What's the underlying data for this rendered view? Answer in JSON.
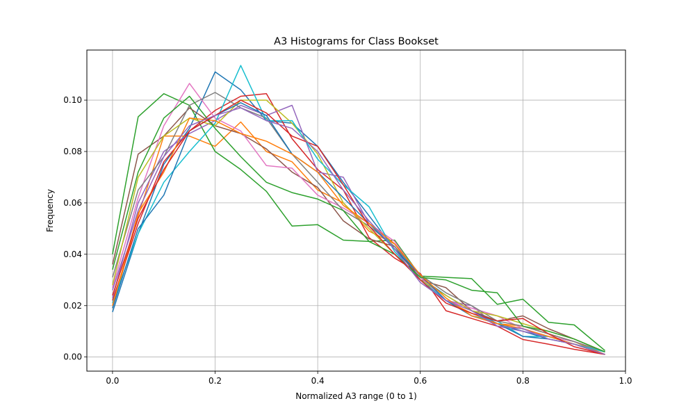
{
  "chart_data": {
    "type": "line",
    "title": "A3 Histograms for Class Bookset",
    "xlabel": "Normalized A3 range (0 to 1)",
    "ylabel": "Frequency",
    "xlim": [
      -0.05,
      1.0
    ],
    "ylim": [
      -0.0055,
      0.1195
    ],
    "x_ticks": [
      0.0,
      0.2,
      0.4,
      0.6,
      0.8,
      1.0
    ],
    "x_tick_labels": [
      "0.0",
      "0.2",
      "0.4",
      "0.6",
      "0.8",
      "1.0"
    ],
    "y_ticks": [
      0.0,
      0.02,
      0.04,
      0.06,
      0.08,
      0.1
    ],
    "y_tick_labels": [
      "0.00",
      "0.02",
      "0.04",
      "0.06",
      "0.08",
      "0.10"
    ],
    "grid": true,
    "legend": "none",
    "x": [
      0.0,
      0.05,
      0.1,
      0.15,
      0.2,
      0.25,
      0.3,
      0.35,
      0.4,
      0.45,
      0.5,
      0.55,
      0.6,
      0.65,
      0.7,
      0.75,
      0.8,
      0.85,
      0.9,
      0.96
    ],
    "series": [
      {
        "color": "#1f77b4",
        "values": [
          0.0175,
          0.048,
          0.075,
          0.089,
          0.111,
          0.104,
          0.092,
          0.091,
          0.082,
          0.068,
          0.055,
          0.042,
          0.031,
          0.024,
          0.018,
          0.013,
          0.01,
          0.007,
          0.005,
          0.002
        ]
      },
      {
        "color": "#ff7f0e",
        "values": [
          0.019,
          0.055,
          0.086,
          0.086,
          0.082,
          0.0915,
          0.08,
          0.076,
          0.065,
          0.06,
          0.049,
          0.044,
          0.031,
          0.022,
          0.017,
          0.013,
          0.012,
          0.009,
          0.006,
          0.001
        ]
      },
      {
        "color": "#2ca02c",
        "values": [
          0.04,
          0.0935,
          0.1025,
          0.098,
          0.08,
          0.073,
          0.0645,
          0.051,
          0.0515,
          0.0455,
          0.045,
          0.0455,
          0.0315,
          0.031,
          0.0305,
          0.0205,
          0.0225,
          0.0135,
          0.0125,
          0.0025
        ]
      },
      {
        "color": "#d62728",
        "values": [
          0.022,
          0.052,
          0.076,
          0.088,
          0.096,
          0.1015,
          0.1025,
          0.085,
          0.073,
          0.065,
          0.0465,
          0.0385,
          0.0325,
          0.018,
          0.015,
          0.012,
          0.0068,
          0.005,
          0.003,
          0.001
        ]
      },
      {
        "color": "#9467bd",
        "values": [
          0.023,
          0.06,
          0.08,
          0.087,
          0.092,
          0.098,
          0.094,
          0.098,
          0.072,
          0.07,
          0.052,
          0.044,
          0.032,
          0.022,
          0.02,
          0.012,
          0.01,
          0.008,
          0.005,
          0.002
        ]
      },
      {
        "color": "#8c564b",
        "values": [
          0.036,
          0.079,
          0.086,
          0.097,
          0.09,
          0.087,
          0.081,
          0.072,
          0.066,
          0.053,
          0.046,
          0.043,
          0.03,
          0.027,
          0.018,
          0.014,
          0.016,
          0.011,
          0.007,
          0.002
        ]
      },
      {
        "color": "#e377c2",
        "values": [
          0.027,
          0.062,
          0.09,
          0.1065,
          0.093,
          0.088,
          0.0745,
          0.0735,
          0.063,
          0.058,
          0.052,
          0.045,
          0.031,
          0.022,
          0.019,
          0.016,
          0.011,
          0.008,
          0.006,
          0.002
        ]
      },
      {
        "color": "#7f7f7f",
        "values": [
          0.031,
          0.065,
          0.078,
          0.098,
          0.103,
          0.097,
          0.093,
          0.079,
          0.068,
          0.057,
          0.051,
          0.043,
          0.032,
          0.025,
          0.02,
          0.014,
          0.012,
          0.009,
          0.006,
          0.002
        ]
      },
      {
        "color": "#bcbd22",
        "values": [
          0.028,
          0.07,
          0.086,
          0.093,
          0.09,
          0.1,
          0.1,
          0.091,
          0.079,
          0.06,
          0.05,
          0.04,
          0.03,
          0.024,
          0.018,
          0.016,
          0.013,
          0.01,
          0.007,
          0.002
        ]
      },
      {
        "color": "#17becf",
        "values": [
          0.021,
          0.048,
          0.068,
          0.08,
          0.091,
          0.1135,
          0.092,
          0.092,
          0.077,
          0.067,
          0.0585,
          0.041,
          0.03,
          0.022,
          0.016,
          0.014,
          0.008,
          0.008,
          0.005,
          0.002
        ]
      },
      {
        "color": "#1f77b4",
        "values": [
          0.019,
          0.05,
          0.063,
          0.088,
          0.094,
          0.099,
          0.094,
          0.079,
          0.072,
          0.062,
          0.052,
          0.042,
          0.032,
          0.022,
          0.016,
          0.013,
          0.008,
          0.007,
          0.005,
          0.001
        ]
      },
      {
        "color": "#ff7f0e",
        "values": [
          0.02,
          0.056,
          0.072,
          0.093,
          0.092,
          0.087,
          0.084,
          0.079,
          0.072,
          0.059,
          0.052,
          0.044,
          0.032,
          0.023,
          0.016,
          0.013,
          0.011,
          0.008,
          0.005,
          0.001
        ]
      },
      {
        "color": "#2ca02c",
        "values": [
          0.034,
          0.072,
          0.093,
          0.1015,
          0.089,
          0.078,
          0.068,
          0.064,
          0.0615,
          0.057,
          0.045,
          0.04,
          0.031,
          0.03,
          0.026,
          0.025,
          0.012,
          0.01,
          0.007,
          0.002
        ]
      },
      {
        "color": "#d62728",
        "values": [
          0.024,
          0.054,
          0.073,
          0.088,
          0.094,
          0.1,
          0.095,
          0.086,
          0.082,
          0.067,
          0.051,
          0.04,
          0.03,
          0.021,
          0.017,
          0.014,
          0.015,
          0.009,
          0.004,
          0.001
        ]
      },
      {
        "color": "#9467bd",
        "values": [
          0.026,
          0.057,
          0.078,
          0.09,
          0.094,
          0.097,
          0.092,
          0.089,
          0.08,
          0.065,
          0.053,
          0.042,
          0.029,
          0.022,
          0.018,
          0.012,
          0.011,
          0.007,
          0.005,
          0.001
        ]
      }
    ]
  }
}
